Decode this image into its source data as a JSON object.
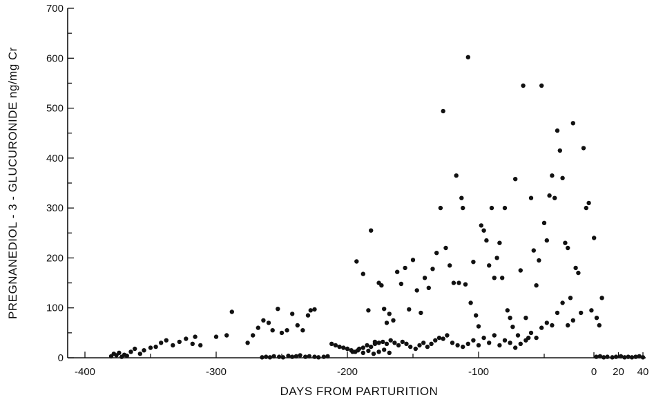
{
  "chart_data": {
    "type": "scatter",
    "title": "",
    "xlabel": "DAYS FROM PARTURITION",
    "ylabel": "PREGNANEDIOL - 3 - GLUCURONIDE  ng/mg Cr",
    "xlim": [
      -425,
      40
    ],
    "ylim": [
      0,
      700
    ],
    "xticks": [
      -400,
      -300,
      -200,
      -100
    ],
    "xticks_post": [
      0,
      20,
      40
    ],
    "yticks": [
      0,
      100,
      200,
      300,
      400,
      500,
      600,
      700
    ],
    "grid": false,
    "legend": "none",
    "marker_color": "#111111",
    "series": [
      {
        "points": [
          [
            -380,
            3
          ],
          [
            -378,
            8
          ],
          [
            -376,
            5
          ],
          [
            -374,
            10
          ],
          [
            -372,
            2
          ],
          [
            -370,
            6
          ],
          [
            -368,
            4
          ],
          [
            -365,
            12
          ],
          [
            -362,
            18
          ],
          [
            -358,
            8
          ],
          [
            -355,
            15
          ],
          [
            -350,
            20
          ],
          [
            -346,
            22
          ],
          [
            -342,
            30
          ],
          [
            -338,
            35
          ],
          [
            -333,
            25
          ],
          [
            -328,
            32
          ],
          [
            -323,
            38
          ],
          [
            -318,
            28
          ],
          [
            -316,
            42
          ],
          [
            -312,
            25
          ],
          [
            -300,
            42
          ],
          [
            -292,
            45
          ],
          [
            -288,
            92
          ],
          [
            -276,
            30
          ],
          [
            -272,
            45
          ],
          [
            -268,
            60
          ],
          [
            -264,
            75
          ],
          [
            -260,
            70
          ],
          [
            -257,
            55
          ],
          [
            -253,
            98
          ],
          [
            -250,
            50
          ],
          [
            -246,
            55
          ],
          [
            -242,
            88
          ],
          [
            -238,
            65
          ],
          [
            -234,
            55
          ],
          [
            -230,
            85
          ],
          [
            -228,
            95
          ],
          [
            -225,
            97
          ],
          [
            -265,
            1
          ],
          [
            -262,
            2
          ],
          [
            -259,
            1
          ],
          [
            -256,
            3
          ],
          [
            -252,
            2
          ],
          [
            -249,
            1
          ],
          [
            -245,
            4
          ],
          [
            -242,
            2
          ],
          [
            -239,
            3
          ],
          [
            -236,
            5
          ],
          [
            -232,
            2
          ],
          [
            -229,
            3
          ],
          [
            -225,
            2
          ],
          [
            -222,
            1
          ],
          [
            -218,
            2
          ],
          [
            -215,
            3
          ],
          [
            -212,
            28
          ],
          [
            -209,
            25
          ],
          [
            -206,
            22
          ],
          [
            -203,
            20
          ],
          [
            -200,
            18
          ],
          [
            -197,
            15
          ],
          [
            -194,
            12
          ],
          [
            -191,
            18
          ],
          [
            -188,
            20
          ],
          [
            -185,
            25
          ],
          [
            -182,
            22
          ],
          [
            -179,
            28
          ],
          [
            -176,
            30
          ],
          [
            -173,
            32
          ],
          [
            -170,
            28
          ],
          [
            -167,
            35
          ],
          [
            -164,
            30
          ],
          [
            -161,
            25
          ],
          [
            -158,
            32
          ],
          [
            -155,
            28
          ],
          [
            -152,
            22
          ],
          [
            -148,
            18
          ],
          [
            -145,
            25
          ],
          [
            -142,
            30
          ],
          [
            -139,
            22
          ],
          [
            -136,
            28
          ],
          [
            -133,
            35
          ],
          [
            -130,
            40
          ],
          [
            -127,
            38
          ],
          [
            -124,
            45
          ],
          [
            -200,
            18
          ],
          [
            -196,
            12
          ],
          [
            -192,
            15
          ],
          [
            -188,
            10
          ],
          [
            -184,
            14
          ],
          [
            -180,
            8
          ],
          [
            -176,
            12
          ],
          [
            -172,
            16
          ],
          [
            -168,
            10
          ],
          [
            -193,
            193
          ],
          [
            -188,
            168
          ],
          [
            -184,
            95
          ],
          [
            -182,
            255
          ],
          [
            -179,
            32
          ],
          [
            -176,
            150
          ],
          [
            -174,
            145
          ],
          [
            -172,
            98
          ],
          [
            -170,
            70
          ],
          [
            -168,
            88
          ],
          [
            -165,
            75
          ],
          [
            -162,
            172
          ],
          [
            -159,
            148
          ],
          [
            -156,
            180
          ],
          [
            -153,
            97
          ],
          [
            -150,
            196
          ],
          [
            -147,
            135
          ],
          [
            -144,
            90
          ],
          [
            -141,
            160
          ],
          [
            -138,
            140
          ],
          [
            -135,
            178
          ],
          [
            -132,
            210
          ],
          [
            -129,
            300
          ],
          [
            -127,
            494
          ],
          [
            -125,
            220
          ],
          [
            -122,
            185
          ],
          [
            -119,
            150
          ],
          [
            -117,
            365
          ],
          [
            -115,
            150
          ],
          [
            -113,
            320
          ],
          [
            -112,
            300
          ],
          [
            -110,
            147
          ],
          [
            -108,
            602
          ],
          [
            -106,
            110
          ],
          [
            -104,
            192
          ],
          [
            -102,
            85
          ],
          [
            -100,
            63
          ],
          [
            -98,
            265
          ],
          [
            -96,
            255
          ],
          [
            -94,
            235
          ],
          [
            -92,
            185
          ],
          [
            -90,
            300
          ],
          [
            -88,
            160
          ],
          [
            -86,
            200
          ],
          [
            -84,
            230
          ],
          [
            -82,
            160
          ],
          [
            -80,
            300
          ],
          [
            -78,
            95
          ],
          [
            -76,
            80
          ],
          [
            -74,
            62
          ],
          [
            -72,
            358
          ],
          [
            -70,
            45
          ],
          [
            -68,
            175
          ],
          [
            -66,
            545
          ],
          [
            -64,
            80
          ],
          [
            -62,
            40
          ],
          [
            -60,
            320
          ],
          [
            -58,
            215
          ],
          [
            -56,
            145
          ],
          [
            -54,
            195
          ],
          [
            -52,
            545
          ],
          [
            -50,
            270
          ],
          [
            -48,
            235
          ],
          [
            -46,
            325
          ],
          [
            -44,
            365
          ],
          [
            -42,
            320
          ],
          [
            -40,
            455
          ],
          [
            -38,
            415
          ],
          [
            -36,
            360
          ],
          [
            -34,
            230
          ],
          [
            -32,
            220
          ],
          [
            -30,
            120
          ],
          [
            -28,
            470
          ],
          [
            -26,
            180
          ],
          [
            -24,
            170
          ],
          [
            -22,
            90
          ],
          [
            -20,
            420
          ],
          [
            -18,
            300
          ],
          [
            -16,
            310
          ],
          [
            -14,
            95
          ],
          [
            -12,
            240
          ],
          [
            -10,
            80
          ],
          [
            -8,
            65
          ],
          [
            -6,
            120
          ],
          [
            -120,
            30
          ],
          [
            -116,
            25
          ],
          [
            -112,
            22
          ],
          [
            -108,
            28
          ],
          [
            -104,
            35
          ],
          [
            -100,
            25
          ],
          [
            -96,
            40
          ],
          [
            -92,
            30
          ],
          [
            -88,
            45
          ],
          [
            -84,
            25
          ],
          [
            -80,
            35
          ],
          [
            -76,
            30
          ],
          [
            -72,
            20
          ],
          [
            -68,
            28
          ],
          [
            -64,
            35
          ],
          [
            -60,
            50
          ],
          [
            -56,
            40
          ],
          [
            -52,
            60
          ],
          [
            -48,
            70
          ],
          [
            -44,
            65
          ],
          [
            -40,
            90
          ],
          [
            -36,
            110
          ],
          [
            -32,
            65
          ],
          [
            -28,
            75
          ],
          [
            2,
            2
          ],
          [
            5,
            3
          ],
          [
            8,
            1
          ],
          [
            11,
            2
          ],
          [
            15,
            1
          ],
          [
            18,
            2
          ],
          [
            22,
            3
          ],
          [
            25,
            1
          ],
          [
            28,
            2
          ],
          [
            31,
            1
          ],
          [
            34,
            2
          ],
          [
            37,
            3
          ],
          [
            40,
            1
          ]
        ]
      }
    ]
  }
}
